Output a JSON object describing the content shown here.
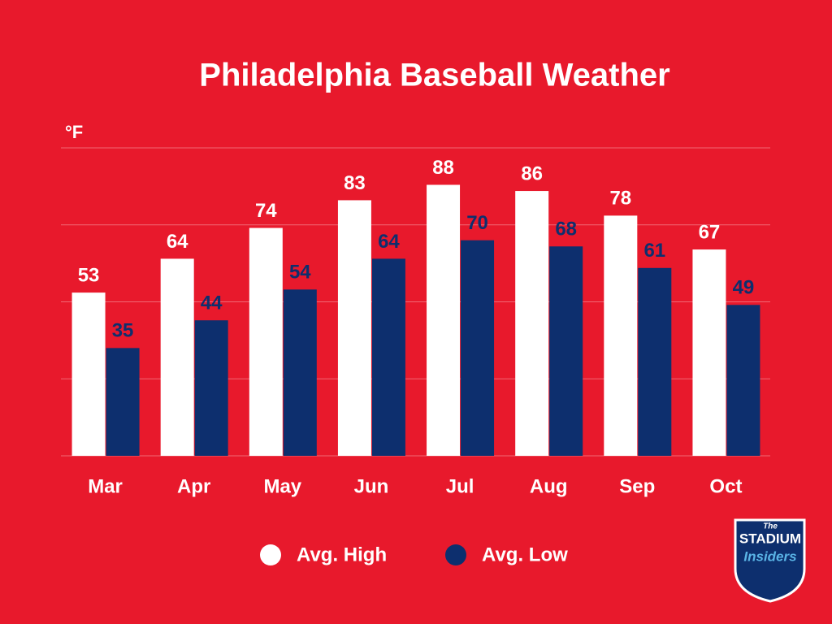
{
  "chart_data": {
    "type": "bar",
    "title": "Philadelphia Baseball Weather",
    "y_label": "°F",
    "categories": [
      "Mar",
      "Apr",
      "May",
      "Jun",
      "Jul",
      "Aug",
      "Sep",
      "Oct"
    ],
    "series": [
      {
        "name": "Avg. High",
        "color": "#ffffff",
        "values": [
          53,
          64,
          74,
          83,
          88,
          86,
          78,
          67
        ]
      },
      {
        "name": "Avg. Low",
        "color": "#0d2f6e",
        "values": [
          35,
          44,
          54,
          64,
          70,
          68,
          61,
          49
        ]
      }
    ],
    "ylim": [
      0,
      100
    ],
    "yticks": [
      0,
      25,
      50,
      75,
      100
    ],
    "grid": true,
    "legend": "bottom",
    "background": "#e8192c"
  },
  "logo": {
    "top": "The",
    "middle": "STADIUM",
    "bottom": "Insiders"
  }
}
